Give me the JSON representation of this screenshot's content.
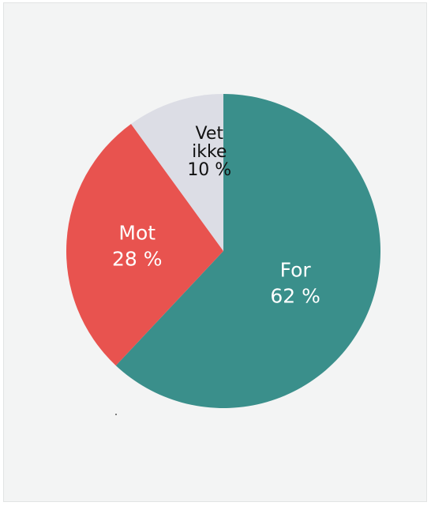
{
  "chart_data": {
    "type": "pie",
    "title": "",
    "start_angle_deg": 0,
    "direction": "clockwise",
    "slices": [
      {
        "label": "For",
        "value": 62,
        "value_text": "62 %",
        "color": "#3a8f8b",
        "label_color": "#ffffff"
      },
      {
        "label": "Mot",
        "value": 28,
        "value_text": "28 %",
        "color": "#e8534f",
        "label_color": "#ffffff"
      },
      {
        "label": "Vet ikke",
        "label_lines": [
          "Vet",
          "ikke"
        ],
        "value": 10,
        "value_text": "10 %",
        "color": "#dcdde5",
        "label_color": "#111111"
      }
    ]
  }
}
